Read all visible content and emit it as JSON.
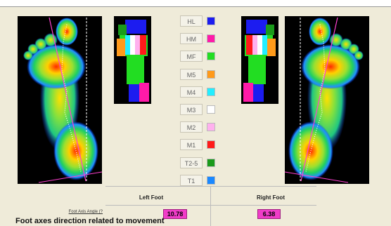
{
  "legend": [
    {
      "label": "HL",
      "color": "#1c1cf0"
    },
    {
      "label": "HM",
      "color": "#ff1aa8"
    },
    {
      "label": "MF",
      "color": "#22dd22"
    },
    {
      "label": "M5",
      "color": "#ff9a1a"
    },
    {
      "label": "M4",
      "color": "#22eeff"
    },
    {
      "label": "M3",
      "color": "#ffffff"
    },
    {
      "label": "M2",
      "color": "#ffb0ee"
    },
    {
      "label": "M1",
      "color": "#ff1a1a"
    },
    {
      "label": "T2-5",
      "color": "#1a9a1a"
    },
    {
      "label": "T1",
      "color": "#1a88ff"
    }
  ],
  "table": {
    "headers": [
      "Left Foot",
      "Right Foot"
    ],
    "row_label": "Foot Axis Angle (?",
    "values": [
      10.78,
      6.38
    ]
  },
  "footer": "Foot axes direction related to movement"
}
